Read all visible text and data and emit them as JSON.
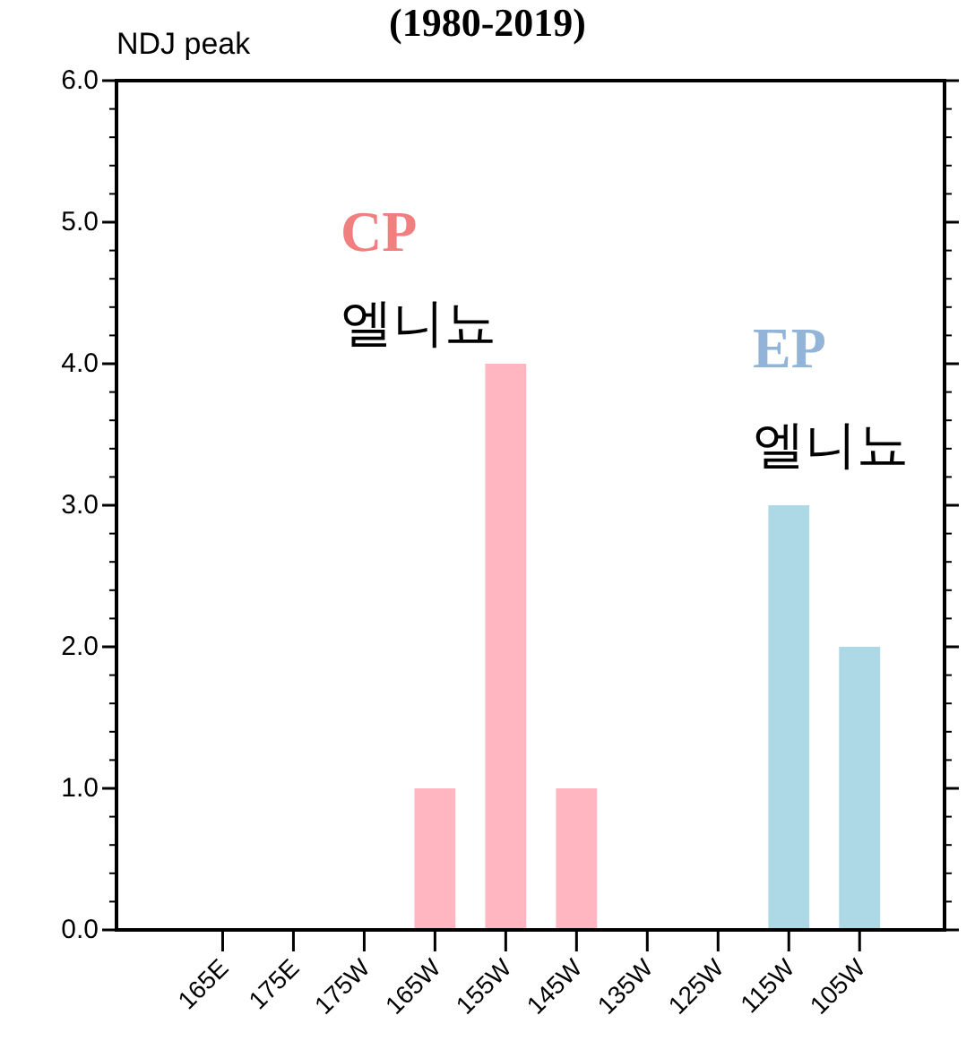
{
  "chart_data": {
    "type": "bar",
    "title": "(1980-2019)",
    "subtitle": "NDJ peak",
    "categories": [
      "165E",
      "175E",
      "175W",
      "165W",
      "155W",
      "145W",
      "135W",
      "125W",
      "115W",
      "105W"
    ],
    "values": [
      0,
      0,
      0,
      1,
      4,
      1,
      0,
      0,
      3,
      2
    ],
    "colors": [
      "#ffb6c1",
      "#ffb6c1",
      "#ffb6c1",
      "#ffb6c1",
      "#ffb6c1",
      "#ffb6c1",
      "#add8e6",
      "#add8e6",
      "#add8e6",
      "#add8e6"
    ],
    "ylim": [
      0,
      6
    ],
    "yticks": [
      {
        "value": 0,
        "label": "0.0"
      },
      {
        "value": 1,
        "label": "1.0"
      },
      {
        "value": 2,
        "label": "2.0"
      },
      {
        "value": 3,
        "label": "3.0"
      },
      {
        "value": 4,
        "label": "4.0"
      },
      {
        "value": 5,
        "label": "5.0"
      },
      {
        "value": 6,
        "label": "6.0"
      }
    ],
    "annotations": [
      "CP 엘니뇨",
      "EP 엘니뇨"
    ],
    "grid": false
  }
}
